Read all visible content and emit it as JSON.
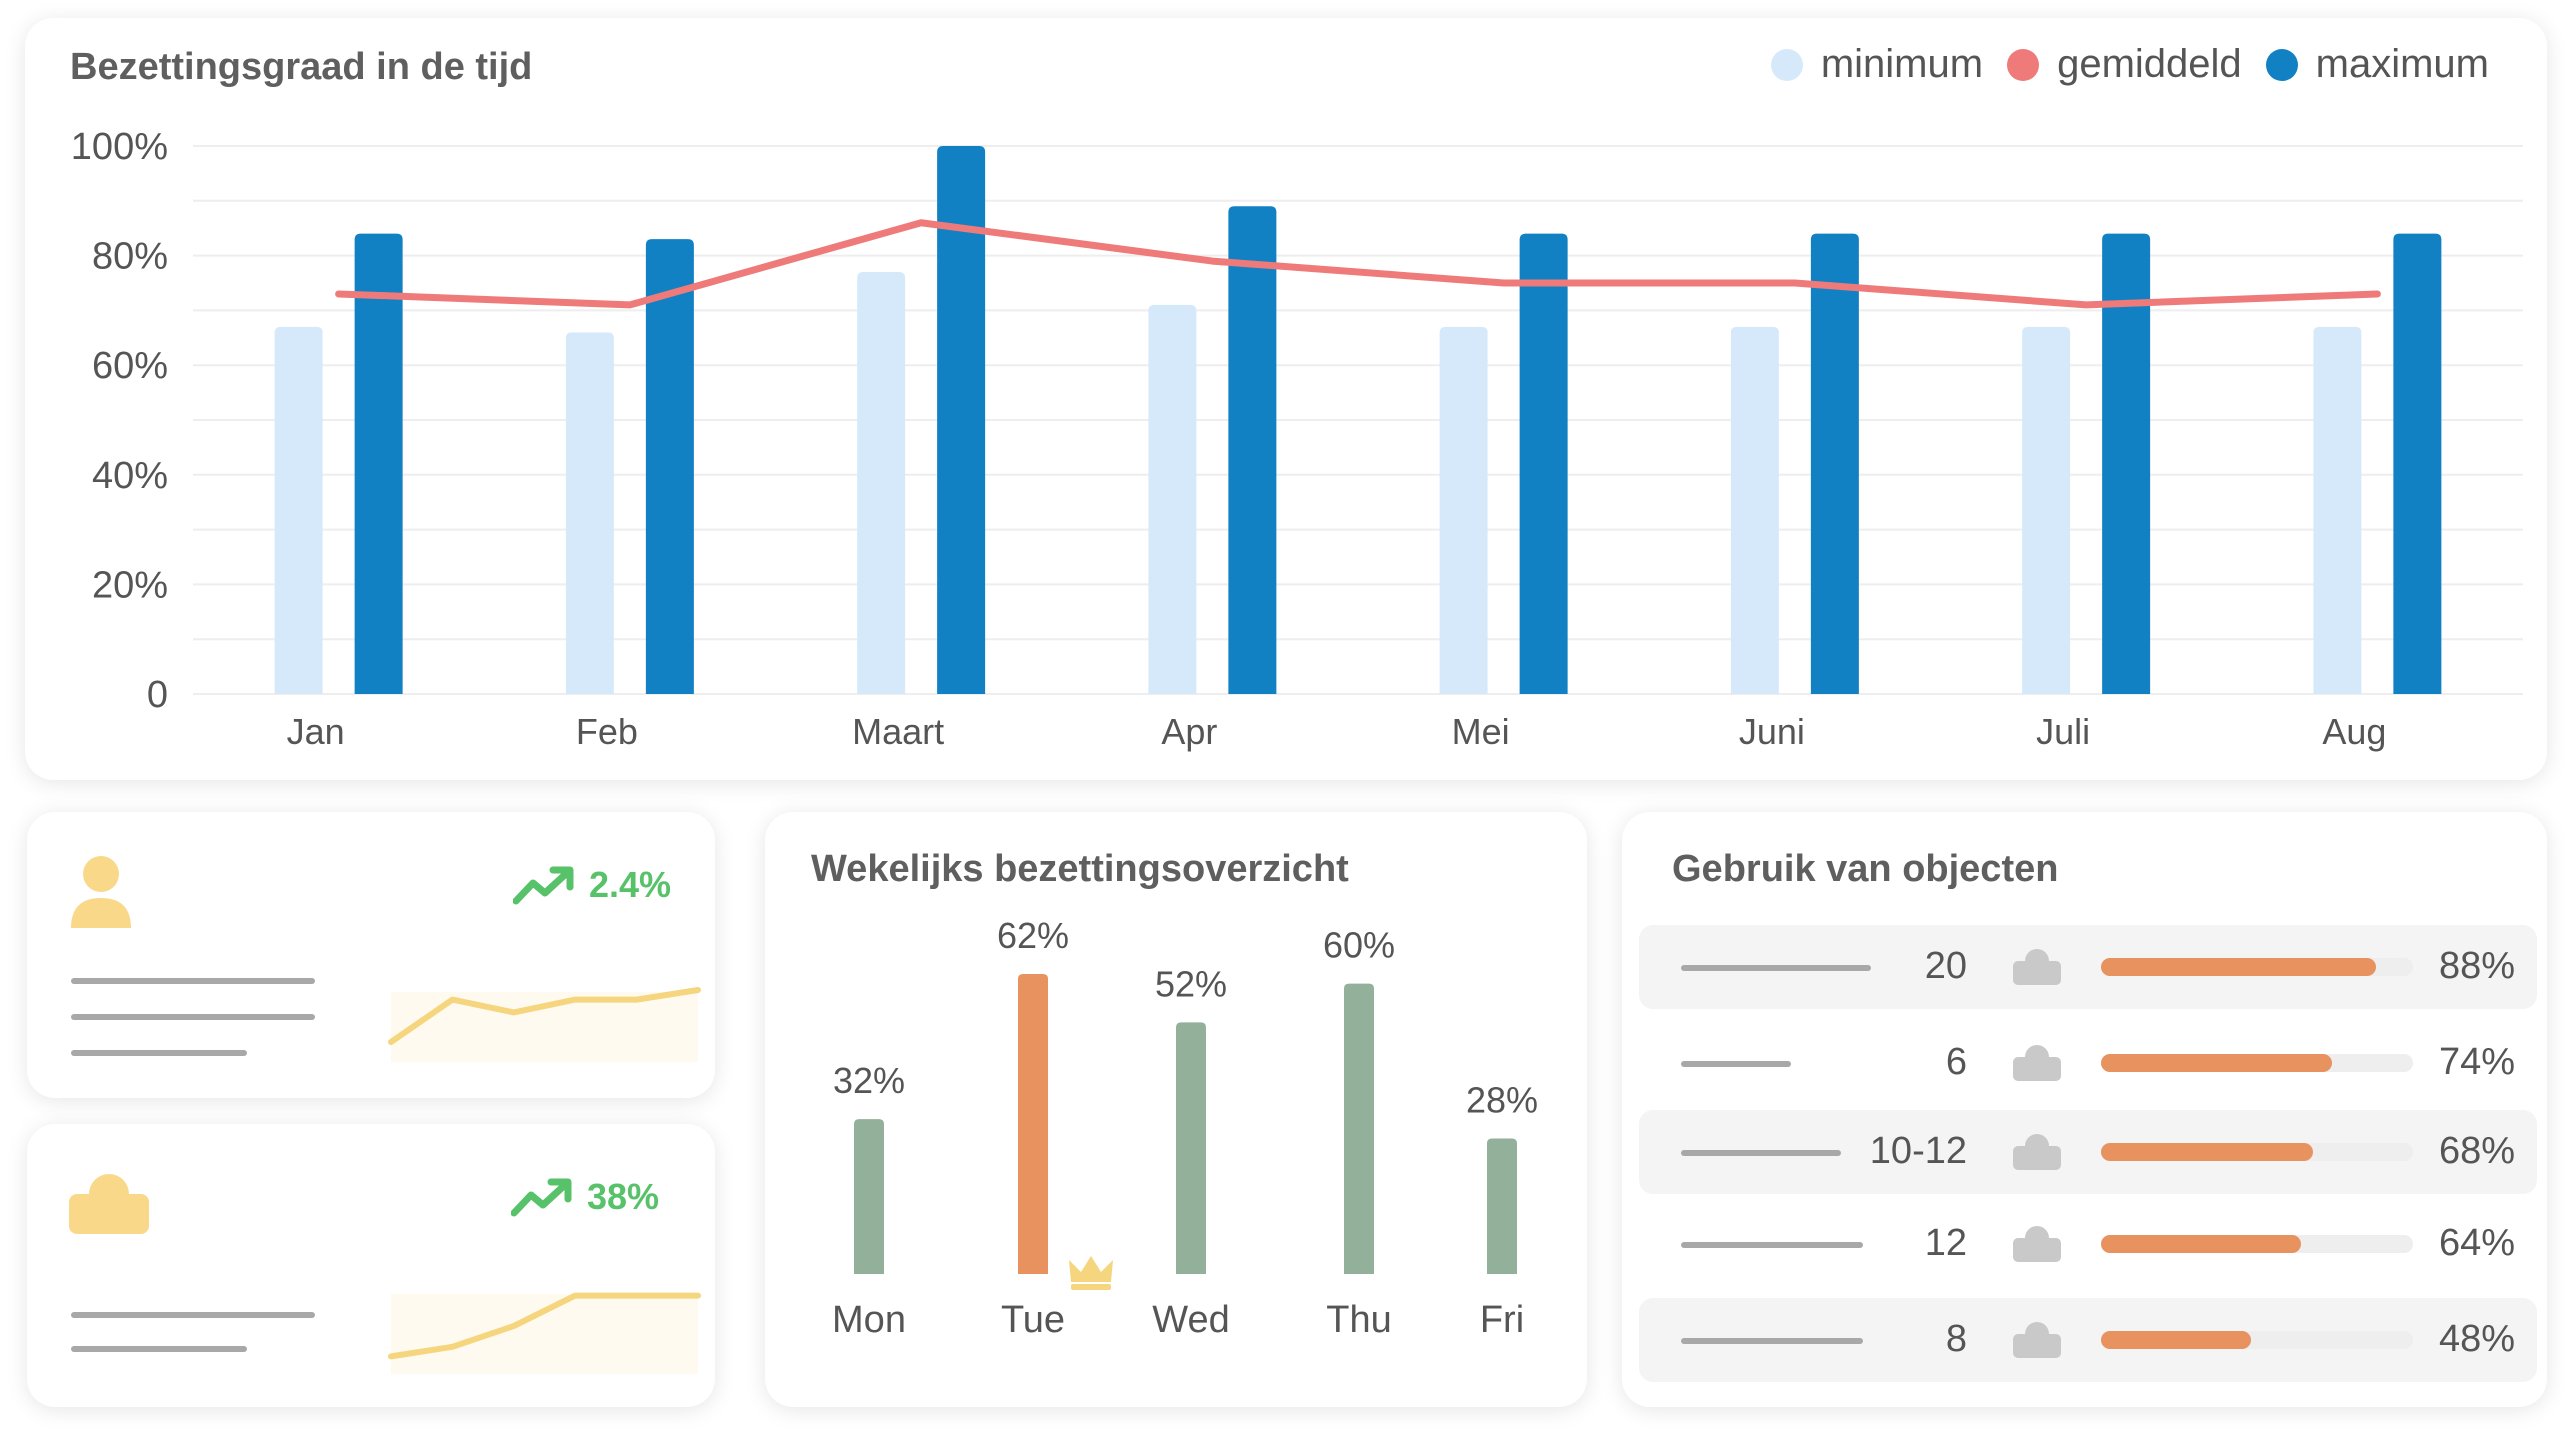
{
  "main": {
    "title": "Bezettingsgraad in de tijd",
    "legend": [
      {
        "label": "minimum",
        "color": "#d6e9fb"
      },
      {
        "label": "gemiddeld",
        "color": "#ef7a7a"
      },
      {
        "label": "maximum",
        "color": "#1281c4"
      }
    ]
  },
  "chart_data": [
    {
      "type": "bar",
      "title": "Bezettingsgraad in de tijd",
      "categories": [
        "Jan",
        "Feb",
        "Maart",
        "Apr",
        "Mei",
        "Juni",
        "Juli",
        "Aug"
      ],
      "series": [
        {
          "name": "minimum",
          "type": "bar",
          "color": "#d6e9fb",
          "values": [
            67,
            66,
            77,
            71,
            67,
            67,
            67,
            67
          ]
        },
        {
          "name": "maximum",
          "type": "bar",
          "color": "#1281c4",
          "values": [
            84,
            83,
            100,
            89,
            84,
            84,
            84,
            84
          ]
        },
        {
          "name": "gemiddeld",
          "type": "line",
          "color": "#ef7a7a",
          "values": [
            73,
            71,
            86,
            79,
            75,
            75,
            71,
            73
          ]
        }
      ],
      "yticks": [
        "0",
        "20%",
        "40%",
        "60%",
        "80%",
        "100%"
      ],
      "ylim": [
        0,
        100
      ],
      "grid": true,
      "legend": "top-right"
    },
    {
      "type": "bar",
      "title": "Wekelijks bezettingsoverzicht",
      "categories": [
        "Mon",
        "Tue",
        "Wed",
        "Thu",
        "Fri"
      ],
      "values": [
        32,
        62,
        52,
        60,
        28
      ],
      "value_labels": [
        "32%",
        "62%",
        "52%",
        "60%",
        "28%"
      ],
      "highlight": "Tue",
      "colors": {
        "default": "#93b09a",
        "highlight": "#e8925f"
      }
    }
  ],
  "kpis": [
    {
      "trend_label": "2.4%",
      "icon": "user-icon",
      "sparkline": [
        0.25,
        0.78,
        0.62,
        0.78,
        0.78,
        0.9
      ]
    },
    {
      "trend_label": "38%",
      "icon": "desk-icon",
      "sparkline": [
        0.22,
        0.34,
        0.6,
        0.98,
        0.98,
        0.98
      ]
    }
  ],
  "weekly": {
    "title": "Wekelijks bezettingsoverzicht",
    "crown_icon": "crown-icon"
  },
  "objects": {
    "title": "Gebruik van objecten",
    "rows": [
      {
        "count": "20",
        "percent_label": "88%",
        "fill": 0.88,
        "icon": "desk-icon"
      },
      {
        "count": "6",
        "percent_label": "74%",
        "fill": 0.74,
        "icon": "desk-icon"
      },
      {
        "count": "10-12",
        "percent_label": "68%",
        "fill": 0.68,
        "icon": "desk-icon"
      },
      {
        "count": "12",
        "percent_label": "64%",
        "fill": 0.64,
        "icon": "desk-icon"
      },
      {
        "count": "8",
        "percent_label": "48%",
        "fill": 0.48,
        "icon": "desk-icon"
      }
    ]
  }
}
